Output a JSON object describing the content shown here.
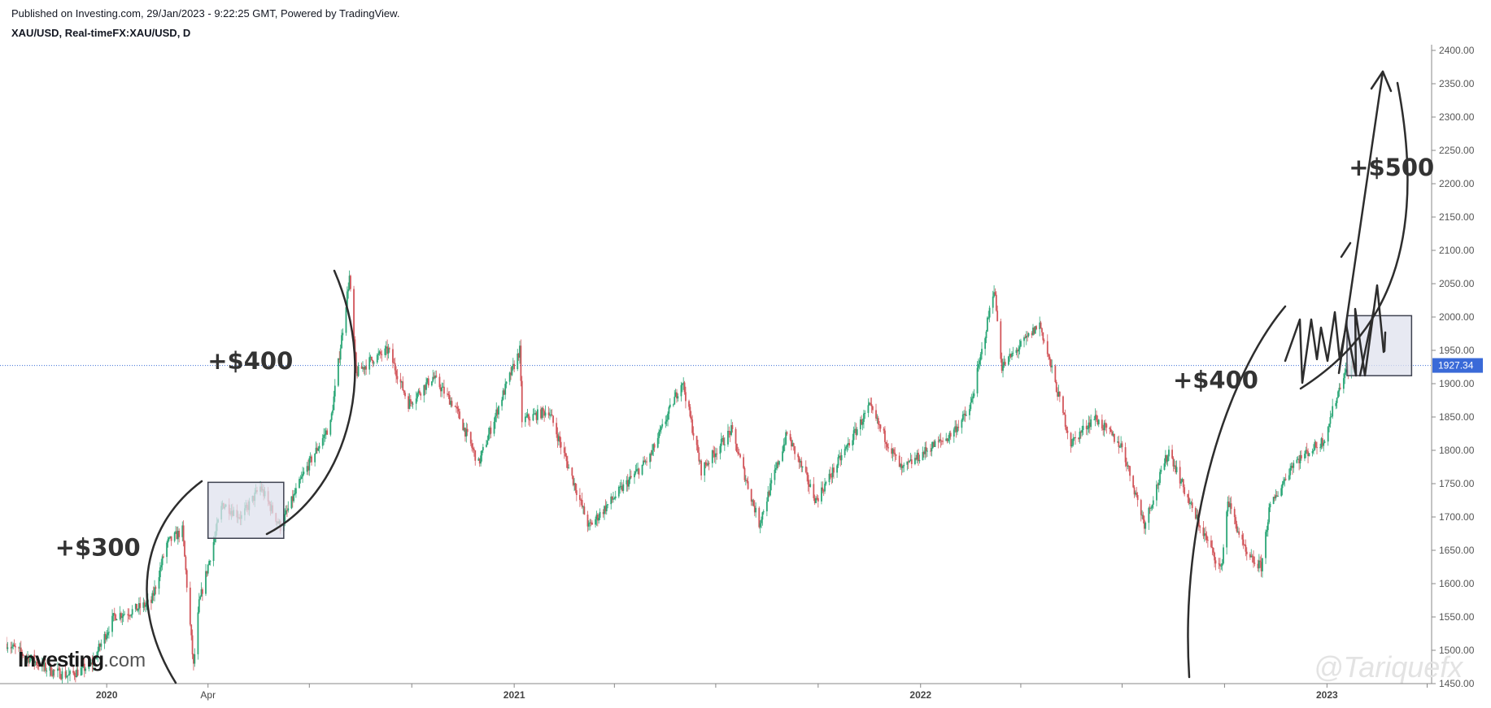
{
  "header": {
    "published": "Published on Investing.com, 29/Jan/2023 - 9:22:25 GMT, Powered by TradingView.",
    "symbol": "XAU/USD, Real-timeFX:XAU/USD, D"
  },
  "logo": {
    "brand": "Investing",
    "suffix": ".com"
  },
  "watermark": "@Tariquefx",
  "chart_data": {
    "type": "candlestick",
    "title": "",
    "xlabel": "",
    "ylabel": "",
    "x_range": [
      "2019-10-03",
      "2023-04-05"
    ],
    "ylim": [
      1450,
      2400
    ],
    "y_ticks": [
      1450,
      1500,
      1550,
      1600,
      1650,
      1700,
      1750,
      1800,
      1850,
      1900,
      1950,
      2000,
      2050,
      2100,
      2150,
      2200,
      2250,
      2300,
      2350,
      2400
    ],
    "x_ticks": [
      {
        "label": "2020",
        "date": "2020-01-01",
        "bold": true
      },
      {
        "label": "Apr",
        "date": "2020-04-01",
        "bold": false
      },
      {
        "label": "",
        "date": "2020-07-01",
        "bold": false
      },
      {
        "label": "",
        "date": "2020-10-01",
        "bold": false
      },
      {
        "label": "2021",
        "date": "2021-01-01",
        "bold": true
      },
      {
        "label": "",
        "date": "2021-04-01",
        "bold": false
      },
      {
        "label": "",
        "date": "2021-07-01",
        "bold": false
      },
      {
        "label": "",
        "date": "2021-10-01",
        "bold": false
      },
      {
        "label": "2022",
        "date": "2022-01-01",
        "bold": true
      },
      {
        "label": "",
        "date": "2022-04-01",
        "bold": false
      },
      {
        "label": "",
        "date": "2022-07-01",
        "bold": false
      },
      {
        "label": "",
        "date": "2022-10-01",
        "bold": false
      },
      {
        "label": "2023",
        "date": "2023-01-01",
        "bold": true
      },
      {
        "label": "",
        "date": "2023-04-01",
        "bold": false
      }
    ],
    "last_price": 1927.34,
    "last_price_label": "1927.34",
    "price_path": [
      [
        "2019-10-03",
        1510
      ],
      [
        "2019-10-20",
        1492
      ],
      [
        "2019-11-10",
        1470
      ],
      [
        "2019-11-28",
        1462
      ],
      [
        "2019-12-18",
        1478
      ],
      [
        "2020-01-08",
        1552
      ],
      [
        "2020-01-22",
        1558
      ],
      [
        "2020-02-10",
        1572
      ],
      [
        "2020-02-24",
        1660
      ],
      [
        "2020-03-09",
        1680
      ],
      [
        "2020-03-19",
        1475
      ],
      [
        "2020-03-24",
        1570
      ],
      [
        "2020-04-14",
        1720
      ],
      [
        "2020-05-01",
        1700
      ],
      [
        "2020-05-18",
        1745
      ],
      [
        "2020-06-05",
        1685
      ],
      [
        "2020-06-26",
        1765
      ],
      [
        "2020-07-20",
        1840
      ],
      [
        "2020-08-06",
        2060
      ],
      [
        "2020-08-12",
        1915
      ],
      [
        "2020-08-25",
        1935
      ],
      [
        "2020-09-10",
        1950
      ],
      [
        "2020-09-28",
        1870
      ],
      [
        "2020-10-20",
        1910
      ],
      [
        "2020-11-09",
        1865
      ],
      [
        "2020-11-30",
        1780
      ],
      [
        "2020-12-21",
        1880
      ],
      [
        "2021-01-06",
        1950
      ],
      [
        "2021-01-08",
        1845
      ],
      [
        "2021-02-01",
        1860
      ],
      [
        "2021-02-26",
        1740
      ],
      [
        "2021-03-09",
        1685
      ],
      [
        "2021-04-01",
        1730
      ],
      [
        "2021-05-03",
        1790
      ],
      [
        "2021-06-01",
        1905
      ],
      [
        "2021-06-18",
        1770
      ],
      [
        "2021-07-15",
        1830
      ],
      [
        "2021-08-09",
        1690
      ],
      [
        "2021-09-03",
        1825
      ],
      [
        "2021-09-29",
        1725
      ],
      [
        "2021-10-20",
        1785
      ],
      [
        "2021-11-16",
        1865
      ],
      [
        "2021-12-15",
        1770
      ],
      [
        "2022-01-10",
        1805
      ],
      [
        "2022-01-26",
        1820
      ],
      [
        "2022-02-14",
        1860
      ],
      [
        "2022-02-24",
        1940
      ],
      [
        "2022-03-08",
        2045
      ],
      [
        "2022-03-15",
        1925
      ],
      [
        "2022-04-18",
        1990
      ],
      [
        "2022-05-16",
        1810
      ],
      [
        "2022-06-06",
        1850
      ],
      [
        "2022-07-01",
        1805
      ],
      [
        "2022-07-21",
        1690
      ],
      [
        "2022-08-12",
        1800
      ],
      [
        "2022-09-01",
        1715
      ],
      [
        "2022-09-28",
        1620
      ],
      [
        "2022-10-04",
        1725
      ],
      [
        "2022-10-21",
        1640
      ],
      [
        "2022-11-03",
        1625
      ],
      [
        "2022-11-10",
        1710
      ],
      [
        "2022-12-01",
        1780
      ],
      [
        "2022-12-29",
        1815
      ],
      [
        "2023-01-16",
        1915
      ],
      [
        "2023-01-27",
        1927
      ]
    ],
    "annotations": [
      {
        "label": "+$300",
        "date": "2019-12-24",
        "price": 1642
      },
      {
        "label": "+$400",
        "date": "2020-05-09",
        "price": 1922
      },
      {
        "label": "+$400",
        "date": "2022-09-23",
        "price": 1893
      },
      {
        "label": "+$500",
        "date": "2023-02-28",
        "price": 2212
      }
    ],
    "boxes": [
      {
        "from": "2020-04-01",
        "to": "2020-06-08",
        "low": 1668,
        "high": 1752
      },
      {
        "from": "2023-01-19",
        "to": "2023-03-18",
        "low": 1912,
        "high": 2002
      }
    ],
    "colors": {
      "up": "#2aa676",
      "down": "#d2555a",
      "price_line": "#3b6fd6",
      "axis": "#888888",
      "drawing": "#2d2d2d",
      "box_fill": "#dfe1ee",
      "box_stroke": "#3e4250",
      "label_bg": "#3a6ad8"
    }
  }
}
